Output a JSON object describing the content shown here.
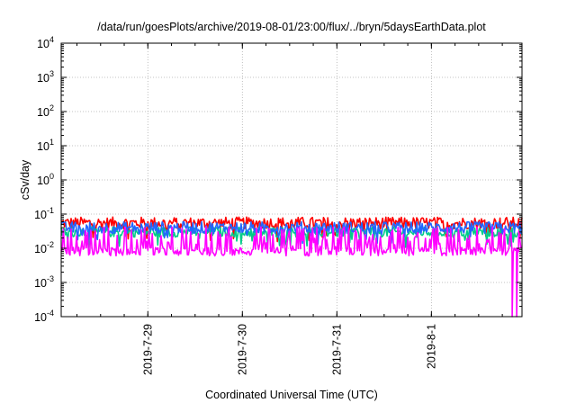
{
  "chart_data": {
    "type": "line",
    "title": "/data/run/goesPlots/archive/2019-08-01/23:00/flux/../bryn/5daysEarthData.plot",
    "xlabel": "Coordinated Universal Time (UTC)",
    "ylabel": "cSv/day",
    "yscale": "log",
    "ylim": [
      0.0001,
      10000
    ],
    "xlim": [
      "2019-07-28 02:00",
      "2019-08-01 23:00"
    ],
    "grid": true,
    "legend": "none",
    "y_ticks": [
      {
        "base": "10",
        "exp": "-4"
      },
      {
        "base": "10",
        "exp": "-3"
      },
      {
        "base": "10",
        "exp": "-2"
      },
      {
        "base": "10",
        "exp": "-1"
      },
      {
        "base": "10",
        "exp": "0"
      },
      {
        "base": "10",
        "exp": "1"
      },
      {
        "base": "10",
        "exp": "2"
      },
      {
        "base": "10",
        "exp": "3"
      },
      {
        "base": "10",
        "exp": "4"
      }
    ],
    "x_ticks": [
      "2019-7-29",
      "2019-7-30",
      "2019-7-31",
      "2019-8-1"
    ],
    "series": [
      {
        "color": "#ff0000",
        "base": 0.055,
        "spread": 0.35,
        "dip_prob": 0.05,
        "dip_depth": 0.4
      },
      {
        "color": "#00cc88",
        "base": 0.03,
        "spread": 0.3,
        "dip_prob": 0.05,
        "dip_depth": 0.5
      },
      {
        "color": "#2266ff",
        "base": 0.04,
        "spread": 0.35,
        "dip_prob": 0.08,
        "dip_depth": 0.5
      },
      {
        "color": "#ff00ff",
        "base": 0.008,
        "spread": 0.25,
        "dip_prob": 0.0,
        "dip_depth": 0.0,
        "spike_prob": 0.35,
        "spike_max": 0.035
      }
    ]
  }
}
